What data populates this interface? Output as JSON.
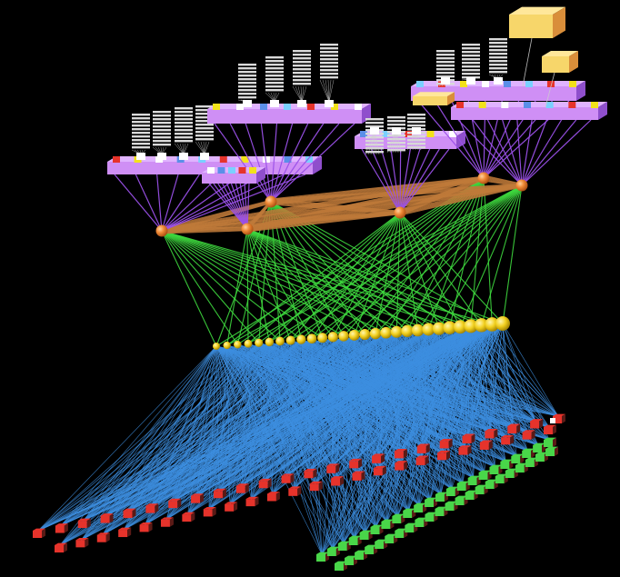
{
  "scene": {
    "description_hidden": "",
    "colors": {
      "background": "#000000",
      "cross_links": "#3ed83e",
      "lower_links": "#3d8fe0",
      "hub_links": "#c07a3a",
      "rack_links": "#9a50e8",
      "rack": "#cf8ff5",
      "rack_shade": "#8f4fcc",
      "hub_node": "#e8782e",
      "mid_node": "#f2d020",
      "leaf_red": "#e6332b",
      "leaf_green": "#49d649",
      "server_stack": "#d9d9d9",
      "big_box": "#f7d66a",
      "big_box_shade": "#d98e3a",
      "port_colors": [
        "#e6332b",
        "#f2e21a",
        "#ffffff",
        "#5b8fe8",
        "#7ad0ff"
      ]
    },
    "counts": {
      "mid_nodes": 28,
      "leaf_red_row": 24,
      "leaf_green_row": 22,
      "hubs": 6
    }
  }
}
